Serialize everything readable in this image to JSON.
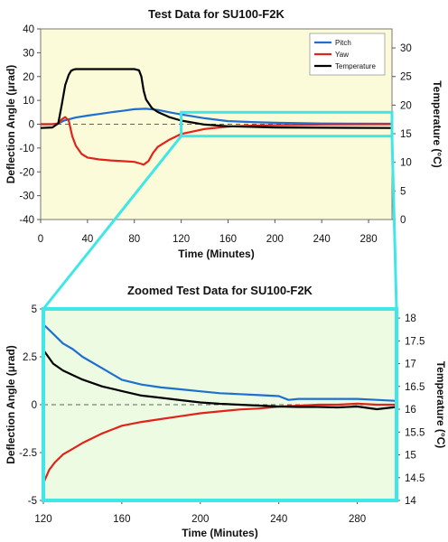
{
  "chart_data": [
    {
      "type": "line",
      "title": "Test Data for SU100-F2K",
      "xlabel": "Time (Minutes)",
      "ylabel": "Deflection Angle (μrad)",
      "y2label": "Temperature (°C)",
      "xlim": [
        0,
        300
      ],
      "ylim": [
        -40,
        40
      ],
      "y2lim": [
        0,
        33.33
      ],
      "xticks": [
        "0",
        "40",
        "80",
        "120",
        "160",
        "200",
        "240",
        "280"
      ],
      "xtick_values": [
        0,
        40,
        80,
        120,
        160,
        200,
        240,
        280
      ],
      "yticks": [
        "-40",
        "-30",
        "-20",
        "-10",
        "0",
        "10",
        "20",
        "30",
        "40"
      ],
      "ytick_values": [
        -40,
        -30,
        -20,
        -10,
        0,
        10,
        20,
        30,
        40
      ],
      "y2ticks": [
        "0",
        "5",
        "10",
        "15",
        "20",
        "25",
        "30"
      ],
      "y2tick_values": [
        0,
        5,
        10,
        15,
        20,
        25,
        30
      ],
      "legend": "top-right",
      "zero_line": "dashed",
      "background": "#fbfbd9",
      "series": [
        {
          "name": "Pitch",
          "axis": "y",
          "color": "#1f6fd1",
          "x": [
            0,
            10,
            15,
            20,
            30,
            40,
            50,
            60,
            70,
            80,
            90,
            100,
            110,
            120,
            140,
            160,
            180,
            200,
            240,
            300
          ],
          "y": [
            0,
            0,
            0.3,
            1.5,
            2.8,
            3.6,
            4.3,
            5.0,
            5.6,
            6.3,
            6.5,
            6.0,
            5.0,
            4.1,
            2.5,
            1.3,
            0.9,
            0.6,
            0.3,
            0.2
          ]
        },
        {
          "name": "Yaw",
          "axis": "y",
          "color": "#e0241b",
          "x": [
            0,
            10,
            15,
            18,
            21,
            24,
            27,
            30,
            35,
            40,
            50,
            60,
            70,
            80,
            85,
            88,
            92,
            96,
            100,
            110,
            120,
            140,
            160,
            180,
            200,
            240,
            300
          ],
          "y": [
            0,
            0,
            0.3,
            2.0,
            3.0,
            1.5,
            -5.0,
            -9.0,
            -12.5,
            -14.0,
            -14.8,
            -15.2,
            -15.5,
            -15.8,
            -16.5,
            -17.0,
            -15.5,
            -12.0,
            -9.5,
            -6.5,
            -4.1,
            -2.0,
            -1.0,
            -0.6,
            -0.4,
            -0.1,
            0
          ]
        },
        {
          "name": "Temperature",
          "axis": "y2",
          "color": "#000000",
          "x": [
            0,
            10,
            15,
            18,
            21,
            24,
            26,
            28,
            30,
            35,
            40,
            50,
            60,
            70,
            80,
            84,
            86,
            88,
            90,
            95,
            100,
            110,
            120,
            140,
            160,
            180,
            200,
            240,
            300
          ],
          "y": [
            16.0,
            16.1,
            16.8,
            20.0,
            23.5,
            25.3,
            26.0,
            26.2,
            26.3,
            26.3,
            26.3,
            26.3,
            26.3,
            26.3,
            26.3,
            26.1,
            25.0,
            22.5,
            21.0,
            19.5,
            18.8,
            17.9,
            17.3,
            16.6,
            16.3,
            16.2,
            16.1,
            16.05,
            16.0
          ]
        }
      ],
      "zoom_region": {
        "x": [
          120,
          300
        ],
        "y": [
          -5,
          5
        ]
      }
    },
    {
      "type": "line",
      "title": "Zoomed Test Data for SU100-F2K",
      "xlabel": "Time (Minutes)",
      "ylabel": "Deflection Angle (μrad)",
      "y2label": "Temperature (°C)",
      "xlim": [
        120,
        300
      ],
      "ylim": [
        -5,
        5
      ],
      "y2lim": [
        14,
        18.2
      ],
      "xticks": [
        "120",
        "160",
        "200",
        "240",
        "280"
      ],
      "xtick_values": [
        120,
        160,
        200,
        240,
        280
      ],
      "yticks": [
        "-5",
        "-2.5",
        "0",
        "2.5",
        "5"
      ],
      "ytick_values": [
        -5,
        -2.5,
        0,
        2.5,
        5
      ],
      "y2ticks": [
        "14",
        "14.5",
        "15",
        "15.5",
        "16",
        "16.5",
        "17",
        "17.5",
        "18"
      ],
      "y2tick_values": [
        14,
        14.5,
        15,
        15.5,
        16,
        16.5,
        17,
        17.5,
        18
      ],
      "zero_line": "dashed",
      "background": "#ecfbe2",
      "series": [
        {
          "name": "Pitch",
          "axis": "y",
          "color": "#1f6fd1",
          "x": [
            120,
            125,
            130,
            135,
            140,
            150,
            160,
            170,
            180,
            190,
            200,
            210,
            220,
            230,
            240,
            245,
            250,
            260,
            270,
            280,
            290,
            300
          ],
          "y": [
            4.2,
            3.7,
            3.2,
            2.9,
            2.5,
            1.9,
            1.3,
            1.05,
            0.9,
            0.8,
            0.7,
            0.6,
            0.55,
            0.5,
            0.45,
            0.25,
            0.3,
            0.3,
            0.3,
            0.3,
            0.25,
            0.2
          ]
        },
        {
          "name": "Yaw",
          "axis": "y",
          "color": "#e0241b",
          "x": [
            120,
            123,
            126,
            130,
            135,
            140,
            150,
            160,
            170,
            180,
            190,
            200,
            210,
            220,
            230,
            240,
            250,
            260,
            270,
            280,
            290,
            300
          ],
          "y": [
            -4.1,
            -3.4,
            -3.0,
            -2.6,
            -2.3,
            -2.0,
            -1.5,
            -1.1,
            -0.9,
            -0.75,
            -0.6,
            -0.45,
            -0.35,
            -0.25,
            -0.2,
            -0.1,
            -0.05,
            0.0,
            0.0,
            0.05,
            0.0,
            0.0
          ]
        },
        {
          "name": "Temperature",
          "axis": "y2",
          "color": "#000000",
          "x": [
            120,
            125,
            130,
            135,
            140,
            150,
            160,
            170,
            180,
            190,
            200,
            210,
            220,
            230,
            240,
            250,
            260,
            270,
            280,
            290,
            300
          ],
          "y": [
            17.3,
            17.0,
            16.85,
            16.75,
            16.65,
            16.5,
            16.4,
            16.3,
            16.25,
            16.2,
            16.15,
            16.12,
            16.1,
            16.08,
            16.06,
            16.05,
            16.05,
            16.04,
            16.06,
            16.0,
            16.05
          ]
        }
      ]
    }
  ],
  "colors": {
    "zoom_box": "#3fe7e7",
    "top_background": "#fbfbd9",
    "zoom_background": "#ecfbe2",
    "legend_background": "#ffffff"
  }
}
